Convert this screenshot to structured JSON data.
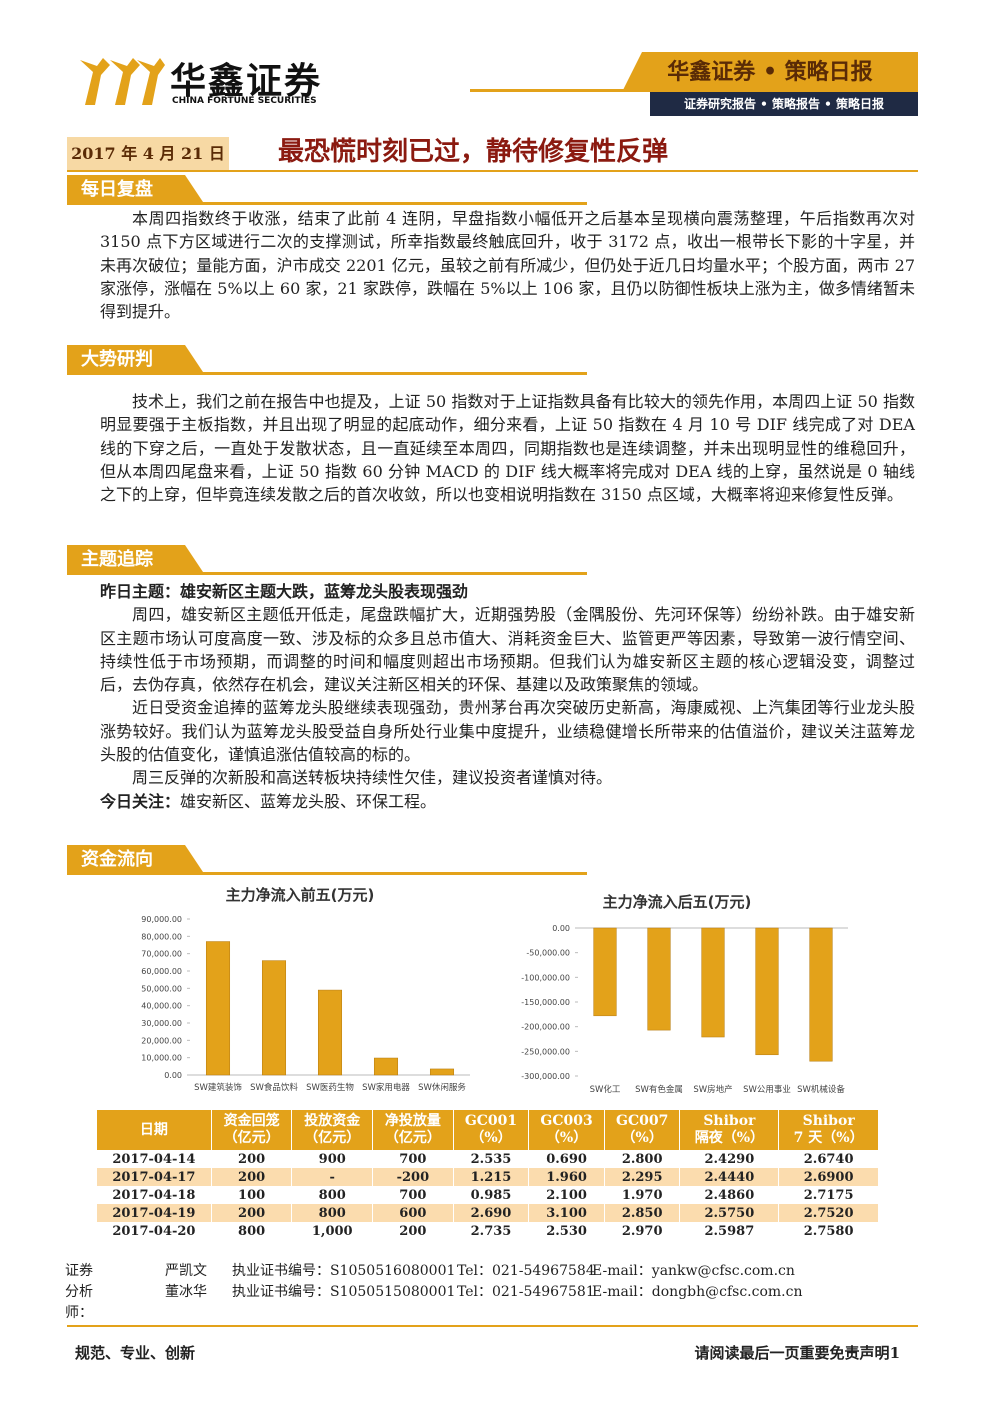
{
  "header": {
    "logo_cn": "华鑫证券",
    "logo_en": "CHINA FORTUNE SECURITIES",
    "brand": "华鑫证券 • 策略日报",
    "tags": "证券研究报告 • 策略报告 • 策略日报"
  },
  "date": "2017 年 4 月 21 日",
  "title": "最恐慌时刻已过，静待修复性反弹",
  "sections": [
    {
      "heading": "每日复盘",
      "paragraphs": [
        "本周四指数终于收涨，结束了此前 4 连阴，早盘指数小幅低开之后基本呈现横向震荡整理，午后指数再次对 3150 点下方区域进行二次的支撑测试，所幸指数最终触底回升，收于 3172 点，收出一根带长下影的十字星，并未再次破位；量能方面，沪市成交 2201 亿元，虽较之前有所减少，但仍处于近几日均量水平；个股方面，两市 27 家涨停，涨幅在 5%以上 60 家，21 家跌停，跌幅在 5%以上 106 家，且仍以防御性板块上涨为主，做多情绪暂未得到提升。"
      ]
    },
    {
      "heading": "大势研判",
      "paragraphs": [
        "技术上，我们之前在报告中也提及，上证 50 指数对于上证指数具备有比较大的领先作用，本周四上证 50 指数明显要强于主板指数，并且出现了明显的起底动作，细分来看，上证 50 指数在 4 月 10 号 DIF 线完成了对 DEA 线的下穿之后，一直处于发散状态，且一直延续至本周四，同期指数也是连续调整，并未出现明显性的维稳回升，但从本周四尾盘来看，上证 50 指数 60 分钟 MACD 的 DIF 线大概率将完成对 DEA 线的上穿，虽然说是 0 轴线之下的上穿，但毕竟连续发散之后的首次收敛，所以也变相说明指数在 3150 点区域，大概率将迎来修复性反弹。"
      ]
    },
    {
      "heading": "主题追踪",
      "paragraphs": [
        {
          "label": "昨日主题：",
          "text": "雄安新区主题大跌，蓝筹龙头股表现强劲"
        },
        "周四，雄安新区主题低开低走，尾盘跌幅扩大，近期强势股（金隅股份、先河环保等）纷纷补跌。由于雄安新区主题市场认可度高度一致、涉及标的众多且总市值大、消耗资金巨大、监管更严等因素，导致第一波行情空间、持续性低于市场预期，而调整的时间和幅度则超出市场预期。但我们认为雄安新区主题的核心逻辑没变，调整过后，去伪存真，依然存在机会，建议关注新区相关的环保、基建以及政策聚焦的领域。",
        "近日受资金追捧的蓝筹龙头股继续表现强劲，贵州茅台再次突破历史新高，海康威视、上汽集团等行业龙头股涨势较好。我们认为蓝筹龙头股受益自身所处行业集中度提升，业绩稳健增长所带来的估值溢价，建议关注蓝筹龙头股的估值变化，谨慎追涨估值较高的标的。",
        "周三反弹的次新股和高送转板块持续性欠佳，建议投资者谨慎对待。",
        {
          "label": "今日关注：",
          "text": "雄安新区、蓝筹龙头股、环保工程。"
        }
      ]
    },
    {
      "heading": "资金流向",
      "paragraphs": []
    }
  ],
  "chart_data": [
    {
      "type": "bar",
      "title": "主力净流入前五(万元)",
      "color": "#e3a21a",
      "categories": [
        "SW建筑装饰",
        "SW食品饮料",
        "SW医药生物",
        "SW家用电器",
        "SW休闲服务"
      ],
      "values": [
        77000,
        66000,
        49000,
        9800,
        3500
      ],
      "ylim": [
        0,
        90000
      ],
      "yticks": [
        {
          "value": 0,
          "label": "0.00"
        },
        {
          "value": 10000,
          "label": "10,000.00"
        },
        {
          "value": 20000,
          "label": "20,000.00"
        },
        {
          "value": 30000,
          "label": "30,000.00"
        },
        {
          "value": 40000,
          "label": "40,000.00"
        },
        {
          "value": 50000,
          "label": "50,000.00"
        },
        {
          "value": 60000,
          "label": "60,000.00"
        },
        {
          "value": 70000,
          "label": "70,000.00"
        },
        {
          "value": 80000,
          "label": "80,000.00"
        },
        {
          "value": 90000,
          "label": "90,000.00"
        }
      ]
    },
    {
      "type": "bar",
      "title": "主力净流入后五(万元)",
      "color": "#e3a21a",
      "categories": [
        "SW化工",
        "SW有色金属",
        "SW房地产",
        "SW公用事业",
        "SW机械设备"
      ],
      "values": [
        -178000,
        -207000,
        -221000,
        -257000,
        -270000
      ],
      "ylim": [
        -300000,
        0
      ],
      "yticks": [
        {
          "value": 0,
          "label": "0.00"
        },
        {
          "value": -50000,
          "label": "-50,000.00"
        },
        {
          "value": -100000,
          "label": "-100,000.00"
        },
        {
          "value": -150000,
          "label": "-150,000.00"
        },
        {
          "value": -200000,
          "label": "-200,000.00"
        },
        {
          "value": -250000,
          "label": "-250,000.00"
        },
        {
          "value": -300000,
          "label": "-300,000.00"
        }
      ]
    }
  ],
  "table": {
    "header": [
      [
        "日期"
      ],
      [
        "资金回笼",
        "（亿元）"
      ],
      [
        "投放资金",
        "（亿元）"
      ],
      [
        "净投放量",
        "（亿元）"
      ],
      [
        "GC001",
        "（%）"
      ],
      [
        "GC003",
        "（%）"
      ],
      [
        "GC007",
        "（%）"
      ],
      [
        "Shibor",
        "隔夜（%）"
      ],
      [
        "Shibor",
        "7 天（%）"
      ]
    ],
    "rows": [
      [
        "2017-04-14",
        "200",
        "900",
        "700",
        "2.535",
        "0.690",
        "2.800",
        "2.4290",
        "2.6740"
      ],
      [
        "2017-04-17",
        "200",
        "-",
        "-200",
        "1.215",
        "1.960",
        "2.295",
        "2.4440",
        "2.6900"
      ],
      [
        "2017-04-18",
        "100",
        "800",
        "700",
        "0.985",
        "2.100",
        "1.970",
        "2.4860",
        "2.7175"
      ],
      [
        "2017-04-19",
        "200",
        "800",
        "600",
        "2.690",
        "3.100",
        "2.850",
        "2.5750",
        "2.7520"
      ],
      [
        "2017-04-20",
        "800",
        "1,000",
        "200",
        "2.735",
        "2.530",
        "2.970",
        "2.5987",
        "2.7580"
      ]
    ]
  },
  "analysts": {
    "label": "证券分析师：",
    "people": [
      {
        "name": "严凯文",
        "cert": "执业证书编号：S1050516080001",
        "tel": "Tel：021-54967584",
        "email": "E-mail：yankw@cfsc.com.cn"
      },
      {
        "name": "董冰华",
        "cert": "执业证书编号：S1050515080001",
        "tel": "Tel：021-54967581",
        "email": "E-mail：dongbh@cfsc.com.cn"
      }
    ]
  },
  "footer": {
    "left": "规范、专业、创新",
    "right": "请阅读最后一页重要免责声明",
    "page": "1"
  }
}
